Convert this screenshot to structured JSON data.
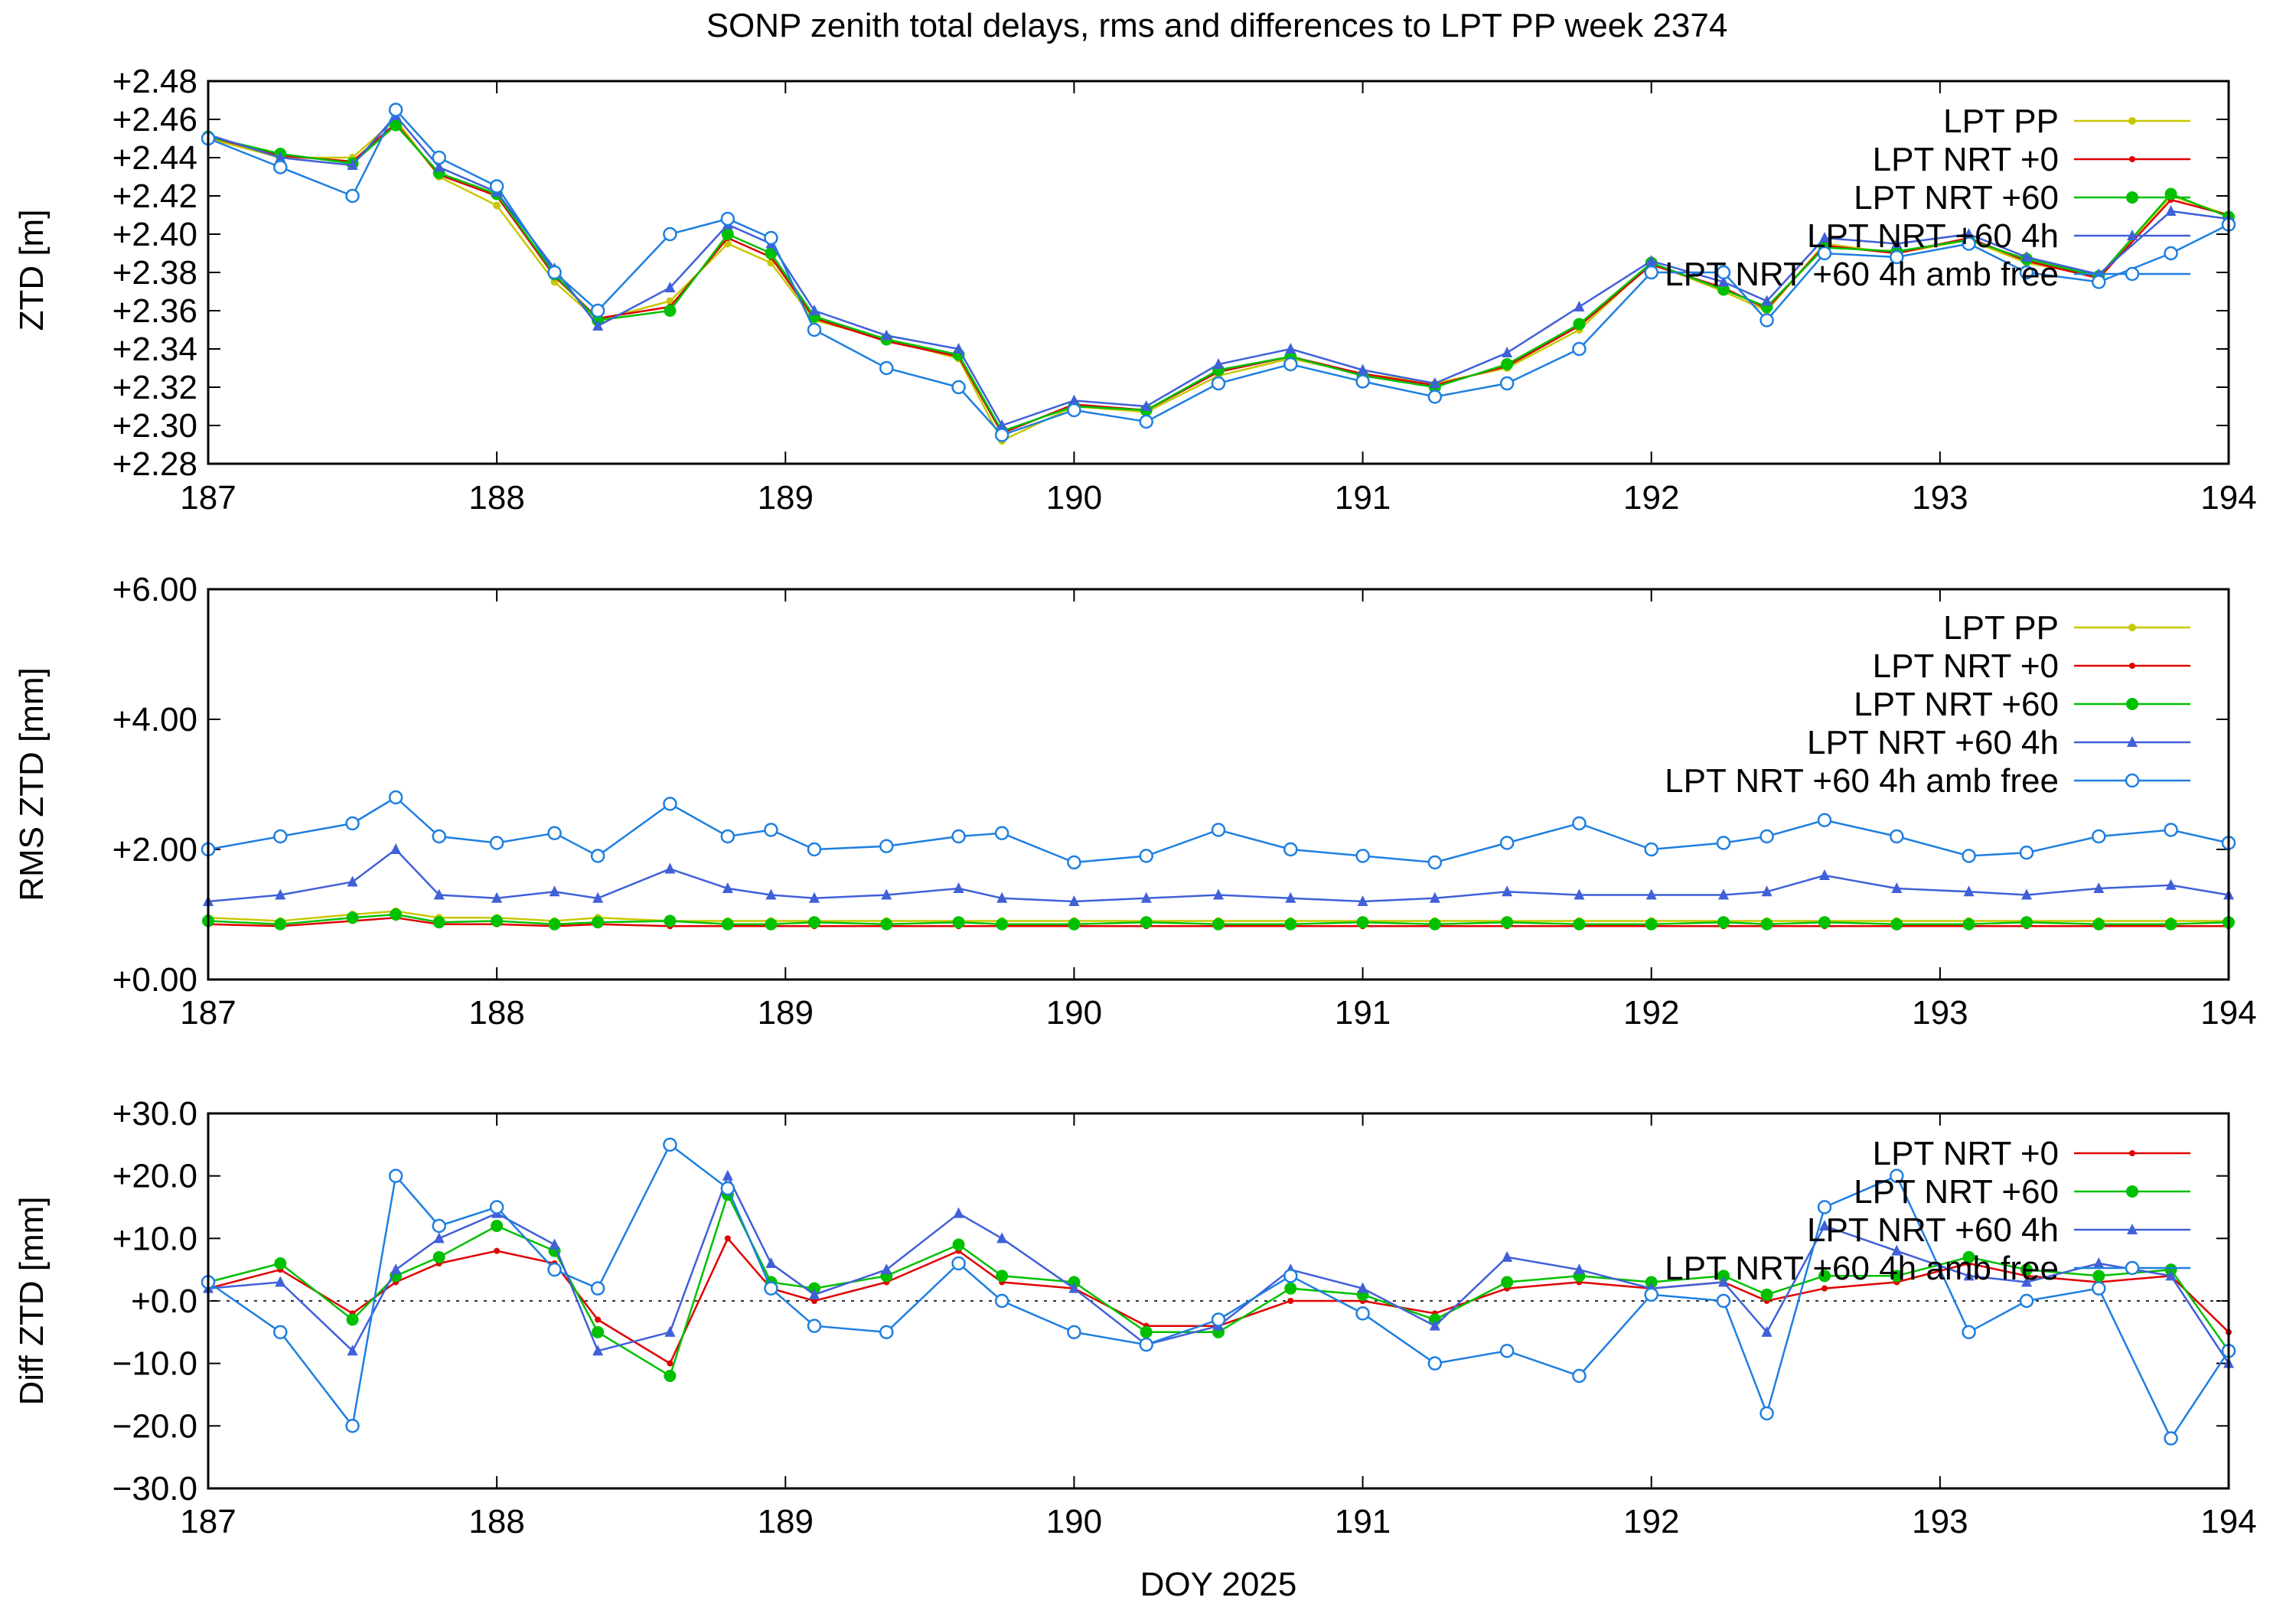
{
  "title": "SONP zenith total delays, rms and differences to LPT PP week 2374",
  "xlabel": "DOY 2025",
  "colors": {
    "lpt_pp": "#c8c800",
    "nrt0": "#e00000",
    "nrt60": "#00c000",
    "nrt60_4h": "#4060d8",
    "amb_free": "#1e7fe0",
    "frame": "#000000"
  },
  "legend": [
    "LPT PP",
    "LPT NRT +0",
    "LPT NRT +60",
    "LPT NRT +60 4h",
    "LPT NRT +60 4h amb free"
  ],
  "chart_data": [
    {
      "type": "line",
      "id": "ztd",
      "ylabel": "ZTD [m]",
      "xlim": [
        187,
        194
      ],
      "ylim": [
        2.28,
        2.48
      ],
      "xticks": [
        "187",
        "188",
        "189",
        "190",
        "191",
        "192",
        "193",
        "194"
      ],
      "yticks": [
        "+2.28",
        "+2.30",
        "+2.32",
        "+2.34",
        "+2.36",
        "+2.38",
        "+2.40",
        "+2.42",
        "+2.44",
        "+2.46",
        "+2.48"
      ],
      "legend": [
        "LPT PP",
        "LPT NRT +0",
        "LPT NRT +60",
        "LPT NRT +60 4h",
        "LPT NRT +60 4h amb free"
      ],
      "x": [
        187.0,
        187.25,
        187.5,
        187.65,
        187.8,
        188.0,
        188.2,
        188.35,
        188.6,
        188.8,
        188.95,
        189.1,
        189.35,
        189.6,
        189.75,
        190.0,
        190.25,
        190.5,
        190.75,
        191.0,
        191.25,
        191.5,
        191.75,
        192.0,
        192.25,
        192.4,
        192.6,
        192.85,
        193.1,
        193.3,
        193.55,
        193.8,
        194.0
      ],
      "series": [
        {
          "name": "LPT PP",
          "key": "lpt_pp",
          "marker": "dot",
          "values": [
            2.45,
            2.44,
            2.44,
            2.46,
            2.43,
            2.415,
            2.375,
            2.355,
            2.365,
            2.395,
            2.385,
            2.355,
            2.345,
            2.335,
            2.292,
            2.31,
            2.307,
            2.326,
            2.335,
            2.327,
            2.322,
            2.33,
            2.35,
            2.385,
            2.37,
            2.36,
            2.395,
            2.39,
            2.397,
            2.385,
            2.378,
            2.42,
            2.41
          ]
        },
        {
          "name": "LPT NRT +0",
          "key": "nrt0",
          "marker": "small",
          "values": [
            2.451,
            2.441,
            2.438,
            2.458,
            2.431,
            2.42,
            2.378,
            2.356,
            2.362,
            2.398,
            2.388,
            2.356,
            2.344,
            2.336,
            2.296,
            2.311,
            2.308,
            2.328,
            2.336,
            2.327,
            2.321,
            2.331,
            2.352,
            2.384,
            2.372,
            2.361,
            2.394,
            2.39,
            2.398,
            2.386,
            2.377,
            2.418,
            2.41
          ]
        },
        {
          "name": "LPT NRT +60",
          "key": "nrt60",
          "marker": "big",
          "values": [
            2.451,
            2.442,
            2.437,
            2.457,
            2.432,
            2.421,
            2.379,
            2.355,
            2.36,
            2.4,
            2.39,
            2.357,
            2.345,
            2.337,
            2.297,
            2.31,
            2.308,
            2.329,
            2.336,
            2.326,
            2.32,
            2.332,
            2.353,
            2.385,
            2.371,
            2.362,
            2.393,
            2.391,
            2.397,
            2.387,
            2.378,
            2.421,
            2.409
          ]
        },
        {
          "name": "LPT NRT +60 4h",
          "key": "nrt60_4h",
          "marker": "triangle",
          "values": [
            2.452,
            2.44,
            2.436,
            2.462,
            2.435,
            2.422,
            2.382,
            2.352,
            2.372,
            2.405,
            2.395,
            2.36,
            2.347,
            2.34,
            2.3,
            2.313,
            2.31,
            2.332,
            2.34,
            2.329,
            2.322,
            2.338,
            2.362,
            2.386,
            2.375,
            2.365,
            2.398,
            2.395,
            2.4,
            2.388,
            2.379,
            2.412,
            2.408
          ]
        },
        {
          "name": "LPT NRT +60 4h amb free",
          "key": "amb_free",
          "marker": "circle",
          "values": [
            2.45,
            2.435,
            2.42,
            2.465,
            2.44,
            2.425,
            2.38,
            2.36,
            2.4,
            2.408,
            2.398,
            2.35,
            2.33,
            2.32,
            2.295,
            2.308,
            2.302,
            2.322,
            2.332,
            2.323,
            2.315,
            2.322,
            2.34,
            2.38,
            2.38,
            2.355,
            2.39,
            2.388,
            2.395,
            2.38,
            2.375,
            2.39,
            2.405
          ]
        }
      ]
    },
    {
      "type": "line",
      "id": "rms",
      "ylabel": "RMS ZTD [mm]",
      "xlim": [
        187,
        194
      ],
      "ylim": [
        0,
        6
      ],
      "xticks": [
        "187",
        "188",
        "189",
        "190",
        "191",
        "192",
        "193",
        "194"
      ],
      "yticks": [
        "+0.00",
        "+2.00",
        "+4.00",
        "+6.00"
      ],
      "legend": [
        "LPT PP",
        "LPT NRT +0",
        "LPT NRT +60",
        "LPT NRT +60 4h",
        "LPT NRT +60 4h amb free"
      ],
      "x": [
        187.0,
        187.25,
        187.5,
        187.65,
        187.8,
        188.0,
        188.2,
        188.35,
        188.6,
        188.8,
        188.95,
        189.1,
        189.35,
        189.6,
        189.75,
        190.0,
        190.25,
        190.5,
        190.75,
        191.0,
        191.25,
        191.5,
        191.75,
        192.0,
        192.25,
        192.4,
        192.6,
        192.85,
        193.1,
        193.3,
        193.55,
        193.8,
        194.0
      ],
      "series": [
        {
          "name": "LPT PP",
          "key": "lpt_pp",
          "marker": "dot",
          "values": [
            0.95,
            0.9,
            1.0,
            1.05,
            0.95,
            0.95,
            0.9,
            0.95,
            0.9,
            0.9,
            0.9,
            0.9,
            0.9,
            0.9,
            0.9,
            0.9,
            0.9,
            0.9,
            0.9,
            0.9,
            0.9,
            0.9,
            0.9,
            0.9,
            0.9,
            0.9,
            0.9,
            0.9,
            0.9,
            0.9,
            0.9,
            0.9,
            0.9
          ]
        },
        {
          "name": "LPT NRT +0",
          "key": "nrt0",
          "marker": "small",
          "values": [
            0.85,
            0.82,
            0.9,
            0.95,
            0.85,
            0.85,
            0.82,
            0.85,
            0.82,
            0.82,
            0.82,
            0.82,
            0.82,
            0.82,
            0.82,
            0.82,
            0.82,
            0.82,
            0.82,
            0.82,
            0.82,
            0.82,
            0.82,
            0.82,
            0.82,
            0.82,
            0.82,
            0.82,
            0.82,
            0.82,
            0.82,
            0.82,
            0.82
          ]
        },
        {
          "name": "LPT NRT +60",
          "key": "nrt60",
          "marker": "big",
          "values": [
            0.9,
            0.85,
            0.95,
            1.0,
            0.88,
            0.9,
            0.85,
            0.88,
            0.9,
            0.85,
            0.85,
            0.88,
            0.85,
            0.88,
            0.85,
            0.85,
            0.88,
            0.85,
            0.85,
            0.88,
            0.85,
            0.88,
            0.85,
            0.85,
            0.88,
            0.85,
            0.88,
            0.85,
            0.85,
            0.88,
            0.85,
            0.85,
            0.88
          ]
        },
        {
          "name": "LPT NRT +60 4h",
          "key": "nrt60_4h",
          "marker": "triangle",
          "values": [
            1.2,
            1.3,
            1.5,
            2.0,
            1.3,
            1.25,
            1.35,
            1.25,
            1.7,
            1.4,
            1.3,
            1.25,
            1.3,
            1.4,
            1.25,
            1.2,
            1.25,
            1.3,
            1.25,
            1.2,
            1.25,
            1.35,
            1.3,
            1.3,
            1.3,
            1.35,
            1.6,
            1.4,
            1.35,
            1.3,
            1.4,
            1.45,
            1.3
          ]
        },
        {
          "name": "LPT NRT +60 4h amb free",
          "key": "amb_free",
          "marker": "circle",
          "values": [
            2.0,
            2.2,
            2.4,
            2.8,
            2.2,
            2.1,
            2.25,
            1.9,
            2.7,
            2.2,
            2.3,
            2.0,
            2.05,
            2.2,
            2.25,
            1.8,
            1.9,
            2.3,
            2.0,
            1.9,
            1.8,
            2.1,
            2.4,
            2.0,
            2.1,
            2.2,
            2.45,
            2.2,
            1.9,
            1.95,
            2.2,
            2.3,
            2.1
          ]
        }
      ]
    },
    {
      "type": "line",
      "id": "diff",
      "ylabel": "Diff ZTD [mm]",
      "xlim": [
        187,
        194
      ],
      "ylim": [
        -30,
        30
      ],
      "xticks": [
        "187",
        "188",
        "189",
        "190",
        "191",
        "192",
        "193",
        "194"
      ],
      "yticks": [
        "−30.0",
        "−20.0",
        "−10.0",
        "+0.0",
        "+10.0",
        "+20.0",
        "+30.0"
      ],
      "legend": [
        "LPT NRT +0",
        "LPT NRT +60",
        "LPT NRT +60 4h",
        "LPT NRT +60 4h amb free"
      ],
      "x": [
        187.0,
        187.25,
        187.5,
        187.65,
        187.8,
        188.0,
        188.2,
        188.35,
        188.6,
        188.8,
        188.95,
        189.1,
        189.35,
        189.6,
        189.75,
        190.0,
        190.25,
        190.5,
        190.75,
        191.0,
        191.25,
        191.5,
        191.75,
        192.0,
        192.25,
        192.4,
        192.6,
        192.85,
        193.1,
        193.3,
        193.55,
        193.8,
        194.0
      ],
      "series": [
        {
          "name": "LPT NRT +0",
          "key": "nrt0",
          "marker": "small",
          "values": [
            2,
            5,
            -2,
            3,
            6,
            8,
            6,
            -3,
            -10,
            10,
            2,
            0,
            3,
            8,
            3,
            2,
            -4,
            -4,
            0,
            0,
            -2,
            2,
            3,
            2,
            3,
            0,
            2,
            3,
            6,
            4,
            3,
            4,
            -5
          ]
        },
        {
          "name": "LPT NRT +60",
          "key": "nrt60",
          "marker": "big",
          "values": [
            3,
            6,
            -3,
            4,
            7,
            12,
            8,
            -5,
            -12,
            17,
            3,
            2,
            4,
            9,
            4,
            3,
            -5,
            -5,
            2,
            1,
            -3,
            3,
            4,
            3,
            4,
            1,
            4,
            4,
            7,
            5,
            4,
            5,
            -8
          ]
        },
        {
          "name": "LPT NRT +60 4h",
          "key": "nrt60_4h",
          "marker": "triangle",
          "values": [
            2,
            3,
            -8,
            5,
            10,
            14,
            9,
            -8,
            -5,
            20,
            6,
            1,
            5,
            14,
            10,
            2,
            -7,
            -4,
            5,
            2,
            -4,
            7,
            5,
            2,
            3,
            -5,
            12,
            8,
            4,
            3,
            6,
            4,
            -10
          ]
        },
        {
          "name": "LPT NRT +60 4h amb free",
          "key": "amb_free",
          "marker": "circle",
          "values": [
            3,
            -5,
            -20,
            20,
            12,
            15,
            5,
            2,
            25,
            18,
            2,
            -4,
            -5,
            6,
            0,
            -5,
            -7,
            -3,
            4,
            -2,
            -10,
            -8,
            -12,
            1,
            0,
            -18,
            15,
            20,
            -5,
            0,
            2,
            -22,
            -8
          ]
        }
      ]
    }
  ]
}
